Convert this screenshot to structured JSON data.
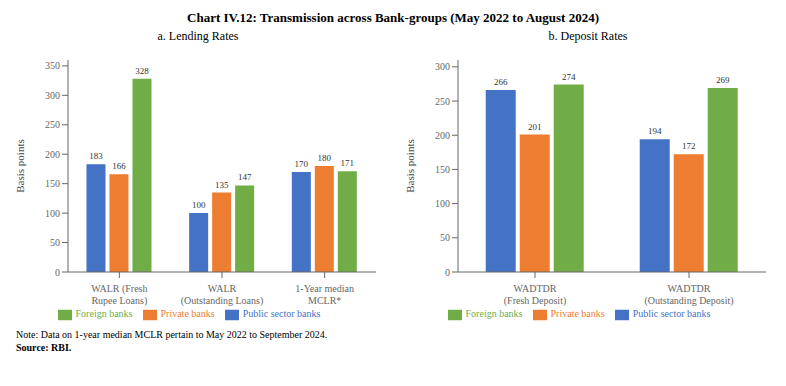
{
  "title": "Chart IV.12: Transmission across Bank-groups (May 2022 to August 2024)",
  "annotations": [
    "Note: Data on 1-year median MCLR pertain to May 2022 to September 2024.",
    "Source: RBI."
  ],
  "chart_data": [
    {
      "type": "bar",
      "title": "a. Lending Rates",
      "y_label": "Basis points",
      "categories": [
        "WALR (Fresh\nRupee Loans)",
        "WALR\n(Outstanding Loans)",
        "1-Year median\nMCLR*"
      ],
      "series": [
        {
          "name": "Public sector banks",
          "color": "#4472C4",
          "values": [
            183,
            100,
            170
          ]
        },
        {
          "name": "Private banks",
          "color": "#ED7D31",
          "values": [
            166,
            135,
            180
          ]
        },
        {
          "name": "Foreign banks",
          "color": "#70AD47",
          "values": [
            328,
            147,
            171
          ]
        }
      ],
      "ylim": [
        0,
        360
      ],
      "yticks": [
        0,
        50,
        100,
        150,
        200,
        250,
        300,
        350
      ],
      "grid": false,
      "legend": "bottom",
      "data_labels": true
    },
    {
      "type": "bar",
      "title": "b. Deposit Rates",
      "y_label": "Basis points",
      "categories": [
        "WADTDR\n(Fresh Deposit)",
        "WADTDR\n(Outstanding Deposit)"
      ],
      "series": [
        {
          "name": "Public sector banks",
          "color": "#4472C4",
          "values": [
            266,
            194
          ]
        },
        {
          "name": "Private banks",
          "color": "#ED7D31",
          "values": [
            201,
            172
          ]
        },
        {
          "name": "Foreign banks",
          "color": "#70AD47",
          "values": [
            274,
            269
          ]
        }
      ],
      "ylim": [
        0,
        310
      ],
      "yticks": [
        0,
        50,
        100,
        150,
        200,
        250,
        300
      ],
      "grid": false,
      "legend": "bottom",
      "data_labels": true
    }
  ]
}
